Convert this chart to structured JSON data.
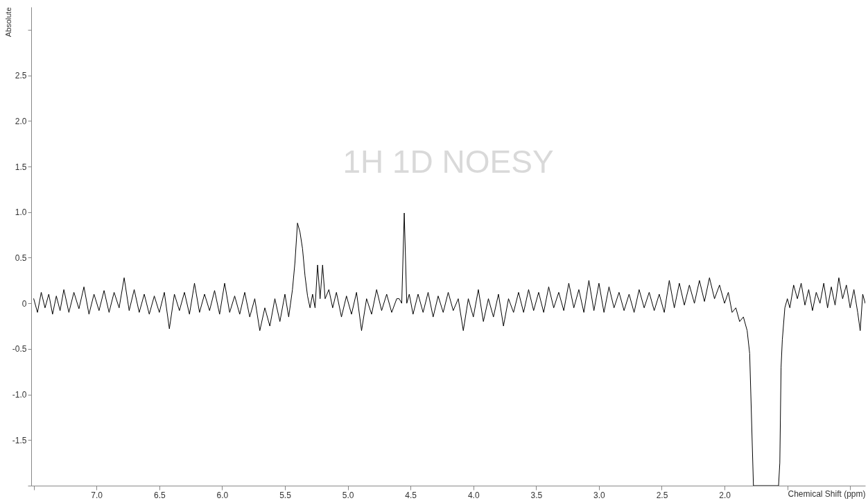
{
  "chart_data": {
    "type": "line",
    "title": "1H 1D NOESY",
    "xlabel": "Chemical Shift (ppm)",
    "ylabel": "Absolute",
    "xlim": [
      7.52,
      0.88
    ],
    "ylim": [
      -2.0,
      3.25
    ],
    "xticks": [
      {
        "value": 7.5,
        "label": null
      },
      {
        "value": 7,
        "label": "7.0"
      },
      6.5,
      {
        "value": 6,
        "label": "6.0"
      },
      5.5,
      {
        "value": 5,
        "label": "5.0"
      },
      4.5,
      {
        "value": 4,
        "label": "4.0"
      },
      3.5,
      {
        "value": 3,
        "label": "3.0"
      },
      2.5,
      {
        "value": 2,
        "label": "2.0"
      },
      {
        "value": 1.5,
        "label": null
      },
      {
        "value": 1,
        "label": null
      }
    ],
    "yticks": [
      {
        "value": -2,
        "label": null
      },
      -1.5,
      {
        "value": -1,
        "label": "-1.0"
      },
      -0.5,
      0,
      0.5,
      {
        "value": 1,
        "label": "1.0"
      },
      1.5,
      {
        "value": 2,
        "label": "2.0"
      },
      2.5,
      {
        "value": 3,
        "label": null
      }
    ],
    "grid": false,
    "marker": "none",
    "line_style": "solid",
    "series": [
      {
        "color": "#000000",
        "x": [
          7.5,
          7.47,
          7.44,
          7.41,
          7.38,
          7.35,
          7.32,
          7.29,
          7.26,
          7.22,
          7.18,
          7.14,
          7.1,
          7.06,
          7.02,
          6.98,
          6.94,
          6.9,
          6.86,
          6.82,
          6.78,
          6.74,
          6.7,
          6.66,
          6.62,
          6.58,
          6.54,
          6.5,
          6.46,
          6.42,
          6.38,
          6.34,
          6.3,
          6.26,
          6.22,
          6.18,
          6.14,
          6.1,
          6.06,
          6.02,
          5.98,
          5.94,
          5.9,
          5.86,
          5.82,
          5.78,
          5.74,
          5.7,
          5.66,
          5.62,
          5.58,
          5.54,
          5.5,
          5.47,
          5.44,
          5.42,
          5.4,
          5.38,
          5.36,
          5.34,
          5.32,
          5.3,
          5.28,
          5.26,
          5.24,
          5.22,
          5.2,
          5.18,
          5.15,
          5.12,
          5.09,
          5.05,
          5.01,
          4.97,
          4.93,
          4.89,
          4.85,
          4.81,
          4.77,
          4.73,
          4.69,
          4.65,
          4.61,
          4.59,
          4.57,
          4.55,
          4.53,
          4.51,
          4.48,
          4.44,
          4.4,
          4.36,
          4.32,
          4.28,
          4.24,
          4.2,
          4.16,
          4.12,
          4.08,
          4.04,
          4.0,
          3.96,
          3.92,
          3.88,
          3.84,
          3.8,
          3.76,
          3.72,
          3.68,
          3.64,
          3.6,
          3.56,
          3.52,
          3.48,
          3.44,
          3.4,
          3.36,
          3.32,
          3.28,
          3.24,
          3.2,
          3.16,
          3.12,
          3.08,
          3.04,
          3.0,
          2.96,
          2.92,
          2.88,
          2.84,
          2.8,
          2.76,
          2.72,
          2.68,
          2.64,
          2.6,
          2.56,
          2.52,
          2.48,
          2.44,
          2.4,
          2.36,
          2.32,
          2.28,
          2.24,
          2.2,
          2.16,
          2.12,
          2.08,
          2.04,
          2.0,
          1.97,
          1.94,
          1.91,
          1.88,
          1.85,
          1.82,
          1.8,
          1.77,
          1.57,
          1.56,
          1.55,
          1.54,
          1.52,
          1.5,
          1.48,
          1.45,
          1.42,
          1.39,
          1.36,
          1.33,
          1.3,
          1.27,
          1.24,
          1.21,
          1.18,
          1.15,
          1.12,
          1.09,
          1.06,
          1.03,
          1.0,
          0.97,
          0.94,
          0.92,
          0.9,
          0.88
        ],
        "values": [
          0.05,
          -0.1,
          0.12,
          -0.05,
          0.1,
          -0.12,
          0.08,
          -0.08,
          0.15,
          -0.1,
          0.12,
          -0.06,
          0.18,
          -0.12,
          0.1,
          -0.08,
          0.14,
          -0.1,
          0.12,
          -0.05,
          0.28,
          -0.08,
          0.15,
          -0.1,
          0.1,
          -0.12,
          0.08,
          -0.1,
          0.12,
          -0.28,
          0.1,
          -0.08,
          0.12,
          -0.12,
          0.22,
          -0.1,
          0.1,
          -0.08,
          0.14,
          -0.12,
          0.22,
          -0.1,
          0.08,
          -0.12,
          0.12,
          -0.15,
          0.05,
          -0.3,
          -0.05,
          -0.25,
          0.05,
          -0.2,
          0.1,
          -0.15,
          0.15,
          0.45,
          0.88,
          0.78,
          0.6,
          0.3,
          0.08,
          -0.05,
          0.1,
          -0.05,
          0.42,
          0.05,
          0.42,
          0.05,
          0.15,
          -0.05,
          0.12,
          -0.15,
          0.08,
          -0.12,
          0.12,
          -0.3,
          0.05,
          -0.12,
          0.15,
          -0.08,
          0.1,
          -0.1,
          0.05,
          0.05,
          0.0,
          0.99,
          0.0,
          0.1,
          -0.12,
          0.1,
          -0.1,
          0.12,
          -0.15,
          0.08,
          -0.1,
          0.12,
          -0.08,
          0.05,
          -0.3,
          0.05,
          -0.15,
          0.15,
          -0.2,
          0.05,
          -0.15,
          0.1,
          -0.25,
          0.05,
          -0.1,
          0.12,
          -0.1,
          0.15,
          -0.08,
          0.12,
          -0.1,
          0.18,
          -0.05,
          0.12,
          -0.08,
          0.22,
          -0.05,
          0.15,
          -0.1,
          0.25,
          -0.08,
          0.22,
          -0.1,
          0.18,
          -0.05,
          0.12,
          -0.08,
          0.1,
          -0.1,
          0.15,
          -0.05,
          0.12,
          -0.08,
          0.1,
          -0.1,
          0.25,
          -0.05,
          0.22,
          -0.02,
          0.2,
          0.0,
          0.25,
          0.02,
          0.28,
          0.05,
          0.2,
          0.0,
          0.12,
          -0.1,
          -0.05,
          -0.2,
          -0.15,
          -0.3,
          -0.55,
          -2.0,
          -2.0,
          -1.75,
          -0.7,
          -0.4,
          -0.05,
          0.05,
          -0.05,
          0.2,
          0.05,
          0.22,
          -0.02,
          0.15,
          -0.08,
          0.12,
          0.0,
          0.22,
          -0.05,
          0.18,
          -0.02,
          0.28,
          0.05,
          0.2,
          -0.05,
          0.15,
          -0.1,
          -0.3,
          0.1,
          0.0
        ]
      }
    ]
  }
}
